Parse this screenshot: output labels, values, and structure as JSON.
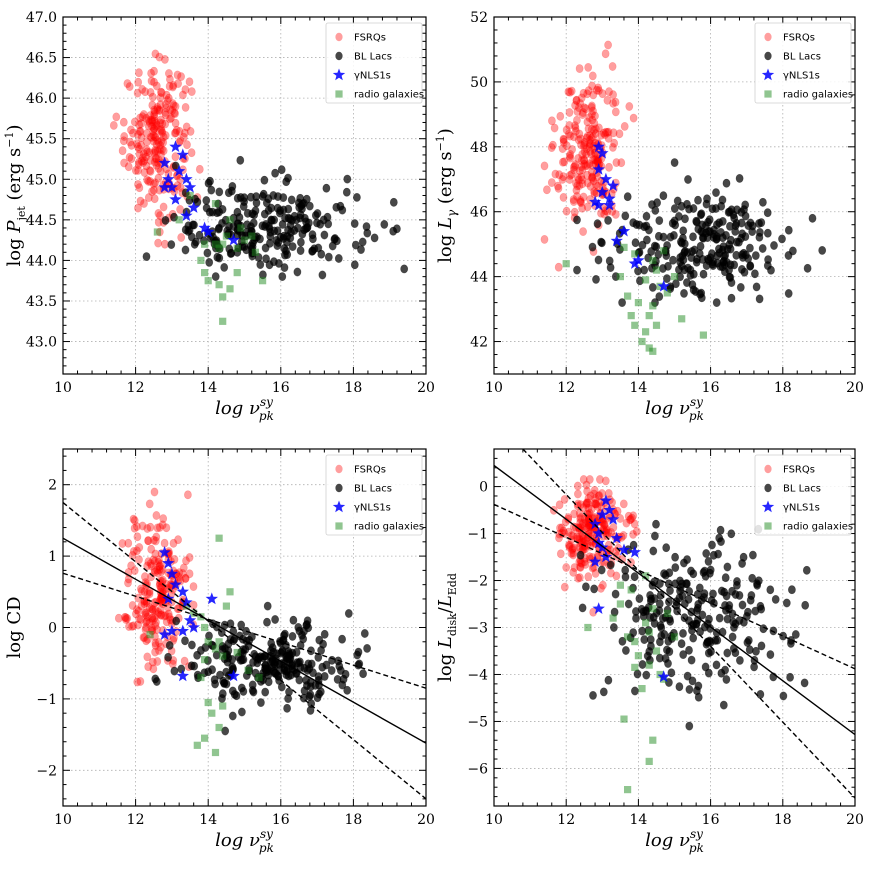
{
  "colors": {
    "fsrq": "#ff0000",
    "bllac": "#000000",
    "nls1": "#0000ff",
    "radio_galaxy": "#228b22"
  },
  "legend": [
    "FSRQs",
    "BL Lacs",
    "γNLS1s",
    "radio galaxies"
  ],
  "chart_data": [
    {
      "id": "pjet",
      "type": "scatter",
      "xlabel": "log ν_pk^sy",
      "ylabel": "log P_jet (erg s⁻¹)",
      "xlim": [
        10,
        20
      ],
      "ylim": [
        42.6,
        47.0
      ],
      "xticks": [
        10,
        12,
        14,
        16,
        18,
        20
      ],
      "yticks": [
        43.0,
        43.5,
        44.0,
        44.5,
        45.0,
        45.5,
        46.0,
        46.5,
        47.0
      ],
      "ytick_labels": [
        "43.0",
        "43.5",
        "44.0",
        "44.5",
        "45.0",
        "45.5",
        "46.0",
        "46.5",
        "47.0"
      ],
      "legend_position": "top-right",
      "groups": {
        "fsrq": {
          "count": 230,
          "x_center": 12.6,
          "x_spread": 0.45,
          "y_center": 45.5,
          "y_spread": 0.45,
          "x_range": [
            11.4,
            14.4
          ],
          "y_range": [
            44.2,
            46.55
          ]
        },
        "bllac": {
          "count": 250,
          "x_center": 15.6,
          "x_spread": 1.3,
          "y_center": 44.4,
          "y_spread": 0.28,
          "x_range": [
            12.3,
            19.4
          ],
          "y_range": [
            43.8,
            45.7
          ]
        },
        "nls1": {
          "points": [
            [
              12.8,
              45.2
            ],
            [
              12.9,
              45.0
            ],
            [
              13.0,
              44.9
            ],
            [
              13.1,
              44.75
            ],
            [
              13.2,
              45.1
            ],
            [
              13.3,
              45.3
            ],
            [
              13.4,
              45.0
            ],
            [
              13.5,
              44.9
            ],
            [
              13.4,
              44.55
            ],
            [
              13.1,
              45.4
            ],
            [
              12.8,
              44.9
            ],
            [
              13.9,
              44.4
            ],
            [
              14.0,
              44.35
            ],
            [
              14.7,
              44.25
            ],
            [
              13.6,
              44.65
            ]
          ]
        },
        "radio_galaxy": {
          "points": [
            [
              12.6,
              44.35
            ],
            [
              13.2,
              44.5
            ],
            [
              13.5,
              44.8
            ],
            [
              13.9,
              44.2
            ],
            [
              13.8,
              44.0
            ],
            [
              14.2,
              44.2
            ],
            [
              14.3,
              44.15
            ],
            [
              14.4,
              44.2
            ],
            [
              14.5,
              44.3
            ],
            [
              14.3,
              43.7
            ],
            [
              14.0,
              43.75
            ],
            [
              14.6,
              43.65
            ],
            [
              14.4,
              43.55
            ],
            [
              14.4,
              43.25
            ],
            [
              15.5,
              43.75
            ],
            [
              14.8,
              43.85
            ],
            [
              14.9,
              44.4
            ],
            [
              15.2,
              44.3
            ],
            [
              15.3,
              44.1
            ],
            [
              14.6,
              44.5
            ],
            [
              13.9,
              43.85
            ],
            [
              14.2,
              44.7
            ],
            [
              14.8,
              44.15
            ],
            [
              15.0,
              44.25
            ]
          ]
        }
      }
    },
    {
      "id": "lgamma",
      "type": "scatter",
      "xlabel": "log ν_pk^sy",
      "ylabel": "log L_γ (erg s⁻¹)",
      "xlim": [
        10,
        20
      ],
      "ylim": [
        41.0,
        52.0
      ],
      "xticks": [
        10,
        12,
        14,
        16,
        18,
        20
      ],
      "yticks": [
        42,
        44,
        46,
        48,
        50,
        52
      ],
      "ytick_labels": [
        "42",
        "44",
        "46",
        "48",
        "50",
        "52"
      ],
      "legend_position": "top-right",
      "groups": {
        "fsrq": {
          "count": 230,
          "x_center": 12.6,
          "x_spread": 0.45,
          "y_center": 47.9,
          "y_spread": 1.2,
          "x_range": [
            11.4,
            14.6
          ],
          "y_range": [
            44.0,
            51.4
          ]
        },
        "bllac": {
          "count": 250,
          "x_center": 15.6,
          "x_spread": 1.3,
          "y_center": 45.0,
          "y_spread": 0.8,
          "x_range": [
            12.3,
            19.4
          ],
          "y_range": [
            43.2,
            47.9
          ]
        },
        "nls1": {
          "points": [
            [
              12.9,
              47.3
            ],
            [
              12.8,
              46.3
            ],
            [
              12.9,
              46.2
            ],
            [
              13.0,
              46.6
            ],
            [
              13.1,
              47.0
            ],
            [
              13.2,
              46.4
            ],
            [
              13.3,
              46.8
            ],
            [
              13.0,
              47.8
            ],
            [
              13.4,
              45.1
            ],
            [
              13.6,
              45.4
            ],
            [
              13.9,
              44.4
            ],
            [
              14.0,
              44.5
            ],
            [
              14.7,
              43.7
            ],
            [
              13.2,
              46.2
            ],
            [
              12.9,
              48.0
            ]
          ]
        },
        "radio_galaxy": {
          "points": [
            [
              12.0,
              44.4
            ],
            [
              13.5,
              44.0
            ],
            [
              13.7,
              43.4
            ],
            [
              13.8,
              42.8
            ],
            [
              13.9,
              42.5
            ],
            [
              14.1,
              42.0
            ],
            [
              14.2,
              42.3
            ],
            [
              14.3,
              42.8
            ],
            [
              14.4,
              43.1
            ],
            [
              14.3,
              41.8
            ],
            [
              14.4,
              41.7
            ],
            [
              14.5,
              42.5
            ],
            [
              14.6,
              43.7
            ],
            [
              14.2,
              43.9
            ],
            [
              14.0,
              43.2
            ],
            [
              15.2,
              42.7
            ],
            [
              15.8,
              42.2
            ],
            [
              15.0,
              44.0
            ],
            [
              14.8,
              43.5
            ],
            [
              14.5,
              44.2
            ],
            [
              13.6,
              44.9
            ],
            [
              14.4,
              44.5
            ],
            [
              14.7,
              44.8
            ],
            [
              13.9,
              44.7
            ]
          ]
        }
      }
    },
    {
      "id": "cd",
      "type": "scatter",
      "xlabel": "log ν_pk^sy",
      "ylabel": "log CD",
      "xlim": [
        10,
        20
      ],
      "ylim": [
        -2.5,
        2.5
      ],
      "xticks": [
        10,
        12,
        14,
        16,
        18,
        20
      ],
      "yticks": [
        -2,
        -1,
        0,
        1,
        2
      ],
      "ytick_labels": [
        "−2",
        "−1",
        "0",
        "1",
        "2"
      ],
      "legend_position": "top-right",
      "fit_lines": [
        {
          "style": "solid",
          "from": [
            10,
            1.25
          ],
          "to": [
            20,
            -1.62
          ]
        },
        {
          "style": "dashed",
          "from": [
            10,
            1.75
          ],
          "to": [
            20,
            -2.4
          ]
        },
        {
          "style": "dashed",
          "from": [
            10,
            0.76
          ],
          "to": [
            20,
            -0.85
          ]
        }
      ],
      "groups": {
        "fsrq": {
          "count": 230,
          "x_center": 12.6,
          "x_spread": 0.45,
          "y_center": 0.45,
          "y_spread": 0.55,
          "x_range": [
            11.4,
            14.0
          ],
          "y_range": [
            -0.9,
            2.05
          ]
        },
        "bllac": {
          "count": 250,
          "x_center": 15.7,
          "x_spread": 1.2,
          "y_center": -0.5,
          "y_spread": 0.3,
          "x_range": [
            12.2,
            19.4
          ],
          "y_range": [
            -1.45,
            0.3
          ]
        },
        "nls1": {
          "points": [
            [
              12.8,
              1.05
            ],
            [
              12.9,
              0.9
            ],
            [
              13.0,
              0.75
            ],
            [
              13.1,
              0.6
            ],
            [
              12.9,
              0.4
            ],
            [
              13.3,
              0.5
            ],
            [
              13.4,
              0.35
            ],
            [
              12.8,
              -0.1
            ],
            [
              13.0,
              -0.05
            ],
            [
              13.3,
              -0.05
            ],
            [
              13.5,
              0.1
            ],
            [
              13.3,
              -0.68
            ],
            [
              14.7,
              -0.68
            ],
            [
              14.1,
              0.4
            ],
            [
              13.6,
              0.0
            ]
          ]
        },
        "radio_galaxy": {
          "points": [
            [
              12.4,
              -0.1
            ],
            [
              13.4,
              0.3
            ],
            [
              13.6,
              0.2
            ],
            [
              13.8,
              0.15
            ],
            [
              13.9,
              0.0
            ],
            [
              14.0,
              -0.2
            ],
            [
              14.2,
              -0.3
            ],
            [
              14.3,
              -0.2
            ],
            [
              14.4,
              -0.4
            ],
            [
              14.5,
              0.3
            ],
            [
              14.6,
              0.5
            ],
            [
              14.3,
              1.25
            ],
            [
              13.9,
              -0.45
            ],
            [
              13.8,
              -0.7
            ],
            [
              14.0,
              -1.05
            ],
            [
              14.1,
              -1.2
            ],
            [
              14.4,
              -1.1
            ],
            [
              14.3,
              -1.4
            ],
            [
              13.9,
              -1.55
            ],
            [
              13.7,
              -1.65
            ],
            [
              14.2,
              -1.75
            ],
            [
              15.1,
              -0.6
            ],
            [
              15.4,
              -0.7
            ],
            [
              14.8,
              -0.35
            ]
          ]
        }
      }
    },
    {
      "id": "ldisk",
      "type": "scatter",
      "xlabel": "log ν_pk^sy",
      "ylabel": "log L_disk / L_Edd",
      "xlim": [
        10,
        20
      ],
      "ylim": [
        -6.8,
        0.8
      ],
      "xticks": [
        10,
        12,
        14,
        16,
        18,
        20
      ],
      "yticks": [
        -6,
        -5,
        -4,
        -3,
        -2,
        -1,
        0
      ],
      "ytick_labels": [
        "−6",
        "−5",
        "−4",
        "−3",
        "−2",
        "−1",
        "0"
      ],
      "legend_position": "top-right",
      "fit_lines": [
        {
          "style": "solid",
          "from": [
            10,
            0.45
          ],
          "to": [
            20,
            -5.28
          ]
        },
        {
          "style": "dashed",
          "from": [
            10.8,
            0.8
          ],
          "to": [
            20,
            -6.63
          ]
        },
        {
          "style": "dashed",
          "from": [
            10,
            -0.38
          ],
          "to": [
            20,
            -3.88
          ]
        }
      ],
      "groups": {
        "fsrq": {
          "count": 230,
          "x_center": 12.7,
          "x_spread": 0.45,
          "y_center": -1.0,
          "y_spread": 0.5,
          "x_range": [
            11.4,
            14.0
          ],
          "y_range": [
            -2.7,
            0.15
          ]
        },
        "bllac": {
          "count": 250,
          "x_center": 15.6,
          "x_spread": 1.3,
          "y_center": -2.8,
          "y_spread": 0.85,
          "x_range": [
            12.3,
            19.4
          ],
          "y_range": [
            -5.1,
            -0.8
          ]
        },
        "nls1": {
          "points": [
            [
              12.8,
              -0.8
            ],
            [
              12.9,
              -1.0
            ],
            [
              13.0,
              -0.6
            ],
            [
              13.1,
              -0.3
            ],
            [
              13.2,
              -0.5
            ],
            [
              13.3,
              -0.7
            ],
            [
              13.4,
              -1.1
            ],
            [
              12.9,
              -1.2
            ],
            [
              13.0,
              -1.3
            ],
            [
              13.1,
              -1.5
            ],
            [
              13.6,
              -1.35
            ],
            [
              13.9,
              -1.4
            ],
            [
              12.9,
              -2.6
            ],
            [
              14.7,
              -4.05
            ],
            [
              12.8,
              -1.6
            ]
          ]
        },
        "radio_galaxy": {
          "points": [
            [
              12.6,
              -3.0
            ],
            [
              13.3,
              -2.8
            ],
            [
              13.5,
              -2.5
            ],
            [
              13.7,
              -3.2
            ],
            [
              13.9,
              -3.3
            ],
            [
              14.0,
              -3.6
            ],
            [
              14.2,
              -2.9
            ],
            [
              14.3,
              -3.1
            ],
            [
              14.4,
              -2.6
            ],
            [
              14.5,
              -3.5
            ],
            [
              14.6,
              -4.0
            ],
            [
              14.3,
              -3.8
            ],
            [
              13.9,
              -3.85
            ],
            [
              13.8,
              -2.2
            ],
            [
              14.2,
              -1.9
            ],
            [
              14.4,
              -5.4
            ],
            [
              14.3,
              -5.85
            ],
            [
              13.7,
              -6.45
            ],
            [
              13.6,
              -4.95
            ],
            [
              14.7,
              -4.1
            ],
            [
              15.0,
              -3.2
            ],
            [
              14.1,
              -4.3
            ],
            [
              13.5,
              -2.1
            ],
            [
              14.8,
              -2.7
            ]
          ]
        }
      }
    }
  ]
}
